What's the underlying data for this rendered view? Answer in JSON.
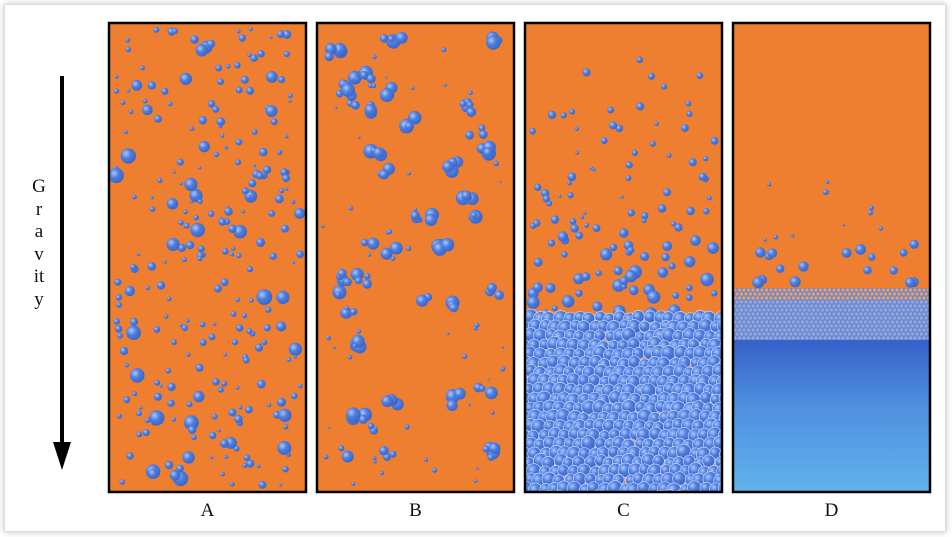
{
  "gravity_label": "Gravity",
  "panels": [
    {
      "label": "A"
    },
    {
      "label": "B"
    },
    {
      "label": "C"
    },
    {
      "label": "D"
    }
  ]
}
